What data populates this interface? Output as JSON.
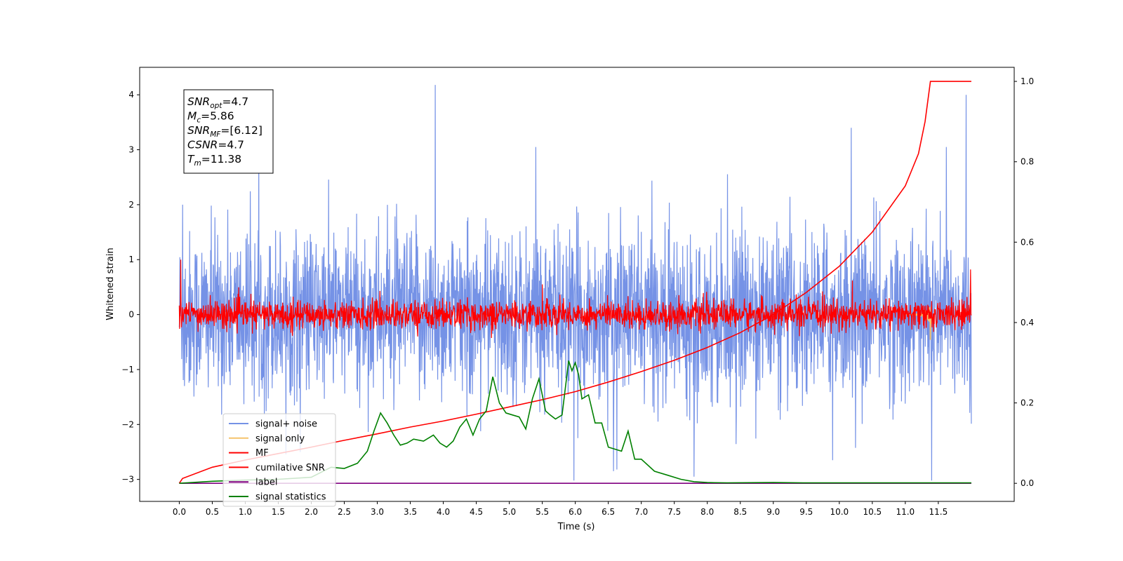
{
  "chart_data": {
    "type": "line",
    "xlabel": "Time (s)",
    "ylabel": "Whitened strain",
    "xlim": [
      -0.6,
      12.65
    ],
    "ylim": [
      -3.4,
      4.5
    ],
    "y2lim": [
      -0.045,
      1.035
    ],
    "x_ticks": [
      0.0,
      0.5,
      1.0,
      1.5,
      2.0,
      2.5,
      3.0,
      3.5,
      4.0,
      4.5,
      5.0,
      5.5,
      6.0,
      6.5,
      7.0,
      7.5,
      8.0,
      8.5,
      9.0,
      9.5,
      10.0,
      10.5,
      11.0,
      11.5
    ],
    "x_tick_labels": [
      "0.0",
      "0.5",
      "1.0",
      "1.5",
      "2.0",
      "2.5",
      "3.0",
      "3.5",
      "4.0",
      "4.5",
      "5.0",
      "5.5",
      "6.0",
      "6.5",
      "7.0",
      "7.5",
      "8.0",
      "8.5",
      "9.0",
      "9.5",
      "10.0",
      "10.5",
      "11.0",
      "11.5"
    ],
    "y_ticks": [
      -3,
      -2,
      -1,
      0,
      1,
      2,
      3,
      4
    ],
    "y_tick_labels": [
      "−3",
      "−2",
      "−1",
      "0",
      "1",
      "2",
      "3",
      "4"
    ],
    "y2_ticks": [
      0.0,
      0.2,
      0.4,
      0.6,
      0.8,
      1.0
    ],
    "y2_tick_labels": [
      "0.0",
      "0.2",
      "0.4",
      "0.6",
      "0.8",
      "1.0"
    ],
    "grid": false,
    "legend_position": "lower-left",
    "annotation": [
      {
        "base": "SNR",
        "sub": "opt",
        "value": "=4.7"
      },
      {
        "base": "M",
        "sub": "c",
        "value": "=5.86"
      },
      {
        "base": "SNR",
        "sub": "MF",
        "value": "=[6.12]"
      },
      {
        "base": "CSNR",
        "sub": "",
        "value": "=4.7"
      },
      {
        "base": "T",
        "sub": "m",
        "value": "=11.38"
      }
    ],
    "series": [
      {
        "name": "signal+ noise",
        "axis": "left",
        "color": "#7592e6",
        "style": "noise",
        "x_range": [
          0.0,
          12.0
        ],
        "baseline": 0.0,
        "std": 0.75,
        "peaks": [
          [
            0.05,
            2.0
          ],
          [
            3.88,
            4.18
          ],
          [
            11.92,
            4.0
          ],
          [
            10.18,
            3.4
          ],
          [
            5.4,
            3.05
          ],
          [
            11.62,
            3.05
          ],
          [
            5.98,
            -3.02
          ],
          [
            11.4,
            -3.02
          ],
          [
            7.8,
            -2.95
          ],
          [
            0.08,
            -1.3
          ],
          [
            6.58,
            -2.85
          ],
          [
            9.9,
            -2.65
          ]
        ]
      },
      {
        "name": "signal only",
        "axis": "left",
        "color": "#f5c36c",
        "style": "chirp",
        "x_range": [
          11.0,
          11.4
        ],
        "peak_value": -0.45,
        "peak_time": 11.38
      },
      {
        "name": "MF",
        "axis": "left",
        "color": "#ff0000",
        "style": "noise",
        "x_range": [
          0.0,
          12.0
        ],
        "baseline": 0.0,
        "std": 0.13,
        "peaks": [
          [
            0.02,
            1.0
          ],
          [
            11.99,
            0.82
          ],
          [
            10.2,
            0.62
          ],
          [
            5.5,
            0.55
          ]
        ]
      },
      {
        "name": "cumilative SNR",
        "axis": "right",
        "color": "#ff0000",
        "style": "line",
        "x": [
          0.0,
          0.05,
          0.5,
          1.0,
          1.5,
          2.0,
          2.5,
          3.0,
          3.5,
          4.0,
          4.5,
          5.0,
          5.5,
          6.0,
          6.5,
          7.0,
          7.5,
          8.0,
          8.5,
          9.0,
          9.5,
          10.0,
          10.5,
          11.0,
          11.2,
          11.3,
          11.38,
          11.5,
          12.0
        ],
        "values": [
          0.0,
          0.012,
          0.04,
          0.058,
          0.074,
          0.09,
          0.107,
          0.123,
          0.14,
          0.155,
          0.172,
          0.19,
          0.208,
          0.228,
          0.252,
          0.278,
          0.306,
          0.338,
          0.375,
          0.42,
          0.475,
          0.54,
          0.625,
          0.74,
          0.82,
          0.9,
          1.0,
          1.0,
          1.0
        ]
      },
      {
        "name": "label",
        "axis": "right",
        "color": "#800080",
        "style": "line",
        "x": [
          0.0,
          12.0
        ],
        "values": [
          0.0,
          0.0
        ]
      },
      {
        "name": "signal statistics",
        "axis": "right",
        "color": "#008000",
        "style": "line",
        "x": [
          0.0,
          0.5,
          1.0,
          1.5,
          2.0,
          2.3,
          2.5,
          2.7,
          2.85,
          2.95,
          3.05,
          3.15,
          3.25,
          3.35,
          3.45,
          3.55,
          3.7,
          3.85,
          3.95,
          4.05,
          4.15,
          4.25,
          4.35,
          4.45,
          4.55,
          4.65,
          4.75,
          4.85,
          4.95,
          5.05,
          5.15,
          5.25,
          5.35,
          5.45,
          5.55,
          5.62,
          5.7,
          5.8,
          5.9,
          5.95,
          6.0,
          6.05,
          6.1,
          6.2,
          6.3,
          6.4,
          6.5,
          6.6,
          6.7,
          6.8,
          6.9,
          7.0,
          7.2,
          7.4,
          7.6,
          7.8,
          8.0,
          8.3,
          9.0,
          9.5,
          10.0,
          11.0,
          12.0
        ],
        "values": [
          0.0,
          0.005,
          0.008,
          0.01,
          0.015,
          0.04,
          0.037,
          0.05,
          0.08,
          0.13,
          0.175,
          0.15,
          0.12,
          0.095,
          0.1,
          0.11,
          0.105,
          0.12,
          0.1,
          0.09,
          0.105,
          0.14,
          0.16,
          0.12,
          0.16,
          0.18,
          0.265,
          0.2,
          0.175,
          0.17,
          0.165,
          0.135,
          0.21,
          0.26,
          0.18,
          0.17,
          0.16,
          0.17,
          0.305,
          0.28,
          0.3,
          0.27,
          0.21,
          0.22,
          0.15,
          0.15,
          0.09,
          0.085,
          0.08,
          0.13,
          0.06,
          0.06,
          0.03,
          0.02,
          0.01,
          0.004,
          0.002,
          0.001,
          0.002,
          0.001,
          0.001,
          0.001,
          0.001
        ]
      }
    ]
  }
}
